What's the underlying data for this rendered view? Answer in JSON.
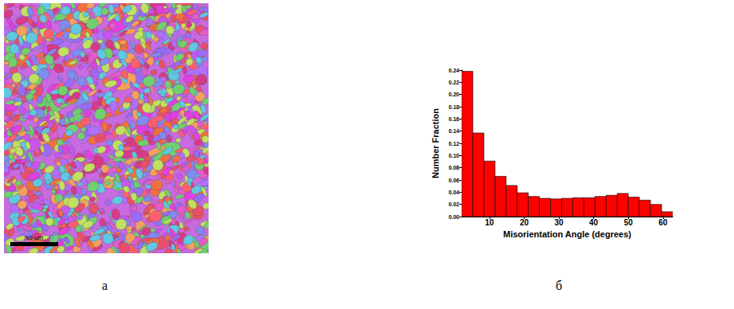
{
  "figure": {
    "panel_a": {
      "caption": "а",
      "scale_bar": "50 µm"
    },
    "panel_b": {
      "caption": "б"
    }
  },
  "chart_data": {
    "type": "histogram",
    "xlabel": "Misorientation Angle (degrees)",
    "ylabel": "Number Fraction",
    "bins": [
      2,
      5.2,
      8.4,
      11.6,
      14.8,
      18,
      21.2,
      24.4,
      27.6,
      30.8,
      34,
      37.2,
      40.4,
      43.6,
      46.8,
      50,
      53.2,
      56.4,
      59.6,
      62.8
    ],
    "values": [
      0.238,
      0.137,
      0.091,
      0.066,
      0.051,
      0.039,
      0.033,
      0.03,
      0.029,
      0.03,
      0.031,
      0.031,
      0.033,
      0.035,
      0.038,
      0.032,
      0.027,
      0.02,
      0.008
    ],
    "color": "#ff0000",
    "xlim": [
      2,
      62.8
    ],
    "xticks": [
      10,
      20,
      30,
      40,
      50,
      60
    ],
    "ylim": [
      0,
      0.24
    ],
    "yticks": [
      {
        "value": 0,
        "label": "0.00"
      },
      {
        "value": 0.02,
        "label": "0.02"
      },
      {
        "value": 0.04,
        "label": "0.04"
      },
      {
        "value": 0.06,
        "label": "0.06"
      },
      {
        "value": 0.08,
        "label": "0.08"
      },
      {
        "value": 0.1,
        "label": "0.10"
      },
      {
        "value": 0.12,
        "label": "0.12"
      },
      {
        "value": 0.14,
        "label": "0.14"
      },
      {
        "value": 0.16,
        "label": "0.16"
      },
      {
        "value": 0.18,
        "label": "0.18"
      },
      {
        "value": 0.2,
        "label": "0.20"
      },
      {
        "value": 0.22,
        "label": "0.22"
      },
      {
        "value": 0.24,
        "label": "0.24"
      }
    ],
    "grid": false
  }
}
